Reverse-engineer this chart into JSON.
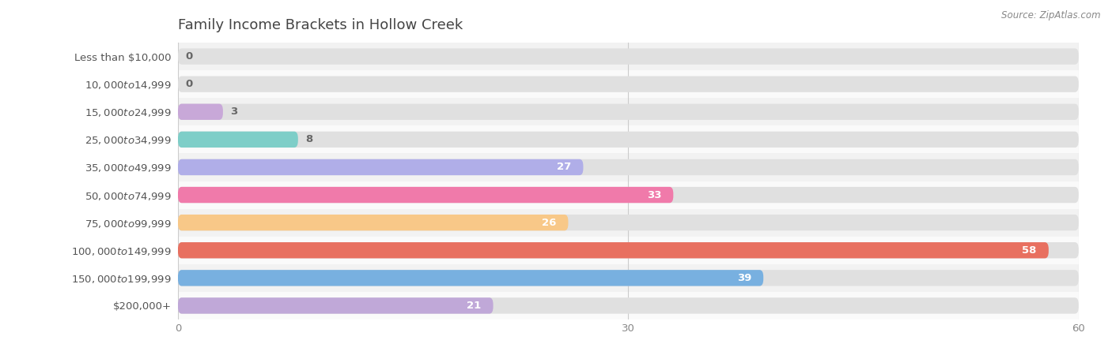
{
  "title": "Family Income Brackets in Hollow Creek",
  "source": "Source: ZipAtlas.com",
  "categories": [
    "Less than $10,000",
    "$10,000 to $14,999",
    "$15,000 to $24,999",
    "$25,000 to $34,999",
    "$35,000 to $49,999",
    "$50,000 to $74,999",
    "$75,000 to $99,999",
    "$100,000 to $149,999",
    "$150,000 to $199,999",
    "$200,000+"
  ],
  "values": [
    0,
    0,
    3,
    8,
    27,
    33,
    26,
    58,
    39,
    21
  ],
  "bar_colors": [
    "#f5a0a0",
    "#a8b8f0",
    "#c8a8d8",
    "#7ecec8",
    "#b0aee8",
    "#f07aaa",
    "#f8c888",
    "#e87060",
    "#78b0e0",
    "#c0a8d8"
  ],
  "row_colors": [
    "#f2f2f2",
    "#fafafa"
  ],
  "xlim_max": 60,
  "xticks": [
    0,
    30,
    60
  ],
  "bar_height": 0.58,
  "label_fontsize": 9.5,
  "title_fontsize": 13,
  "value_inside_color": "#ffffff",
  "value_outside_color": "#666666",
  "inside_threshold": 9
}
